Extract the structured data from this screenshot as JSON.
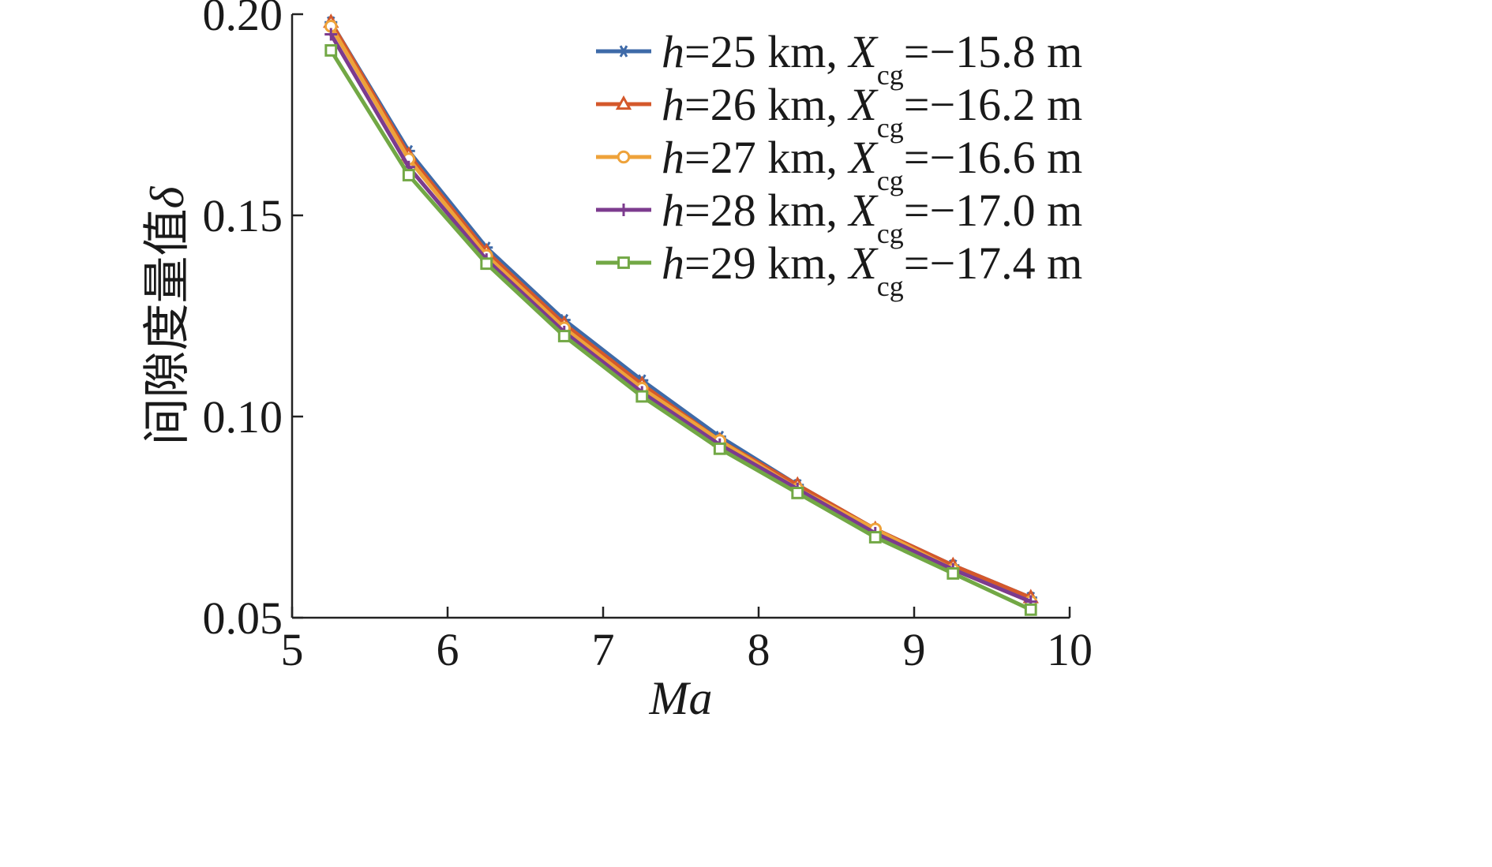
{
  "chart_data": {
    "type": "line",
    "xlabel": "Ma",
    "ylabel": "间隙度量值δ",
    "ylabel_text": "间隙度量值",
    "ylabel_symbol": "δ",
    "xlim": [
      5,
      10
    ],
    "ylim": [
      0.05,
      0.2
    ],
    "x_ticks": [
      5,
      6,
      7,
      8,
      9,
      10
    ],
    "x_tick_labels": [
      "5",
      "6",
      "7",
      "8",
      "9",
      "10"
    ],
    "y_ticks": [
      0.05,
      0.1,
      0.15,
      0.2
    ],
    "y_tick_labels": [
      "0.05",
      "0.10",
      "0.15",
      "0.20"
    ],
    "grid": false,
    "legend_position": "top-right",
    "x": [
      5.25,
      5.75,
      6.25,
      6.75,
      7.25,
      7.75,
      8.25,
      8.75,
      9.25,
      9.75
    ],
    "series": [
      {
        "name": "h=25 km, Xcg=−15.8 m",
        "h_var": "h",
        "h_rest": "=25 km, ",
        "x_var": "X",
        "x_sub": "cg",
        "x_rest": "=−15.8 m",
        "color": "#3e6aa8",
        "marker": "asterisk",
        "values": [
          0.198,
          0.166,
          0.142,
          0.124,
          0.109,
          0.095,
          0.083,
          0.072,
          0.063,
          0.055
        ]
      },
      {
        "name": "h=26 km, Xcg=−16.2 m",
        "h_var": "h",
        "h_rest": "=26 km, ",
        "x_var": "X",
        "x_sub": "cg",
        "x_rest": "=−16.2 m",
        "color": "#d4582b",
        "marker": "triangle",
        "values": [
          0.198,
          0.165,
          0.141,
          0.123,
          0.108,
          0.094,
          0.083,
          0.072,
          0.063,
          0.055
        ]
      },
      {
        "name": "h=27 km, Xcg=−16.6 m",
        "h_var": "h",
        "h_rest": "=27 km, ",
        "x_var": "X",
        "x_sub": "cg",
        "x_rest": "=−16.6 m",
        "color": "#eea23a",
        "marker": "circle",
        "values": [
          0.197,
          0.164,
          0.14,
          0.122,
          0.107,
          0.094,
          0.082,
          0.072,
          0.062,
          0.054
        ]
      },
      {
        "name": "h=28 km, Xcg=−17.0 m",
        "h_var": "h",
        "h_rest": "=28 km, ",
        "x_var": "X",
        "x_sub": "cg",
        "x_rest": "=−17.0 m",
        "color": "#7c3b8e",
        "marker": "plus",
        "values": [
          0.195,
          0.162,
          0.139,
          0.121,
          0.106,
          0.093,
          0.082,
          0.071,
          0.062,
          0.054
        ]
      },
      {
        "name": "h=29 km, Xcg=−17.4 m",
        "h_var": "h",
        "h_rest": "=29 km, ",
        "x_var": "X",
        "x_sub": "cg",
        "x_rest": "=−17.4 m",
        "color": "#72a845",
        "marker": "square",
        "values": [
          0.191,
          0.16,
          0.138,
          0.12,
          0.105,
          0.092,
          0.081,
          0.07,
          0.061,
          0.052
        ]
      }
    ]
  }
}
